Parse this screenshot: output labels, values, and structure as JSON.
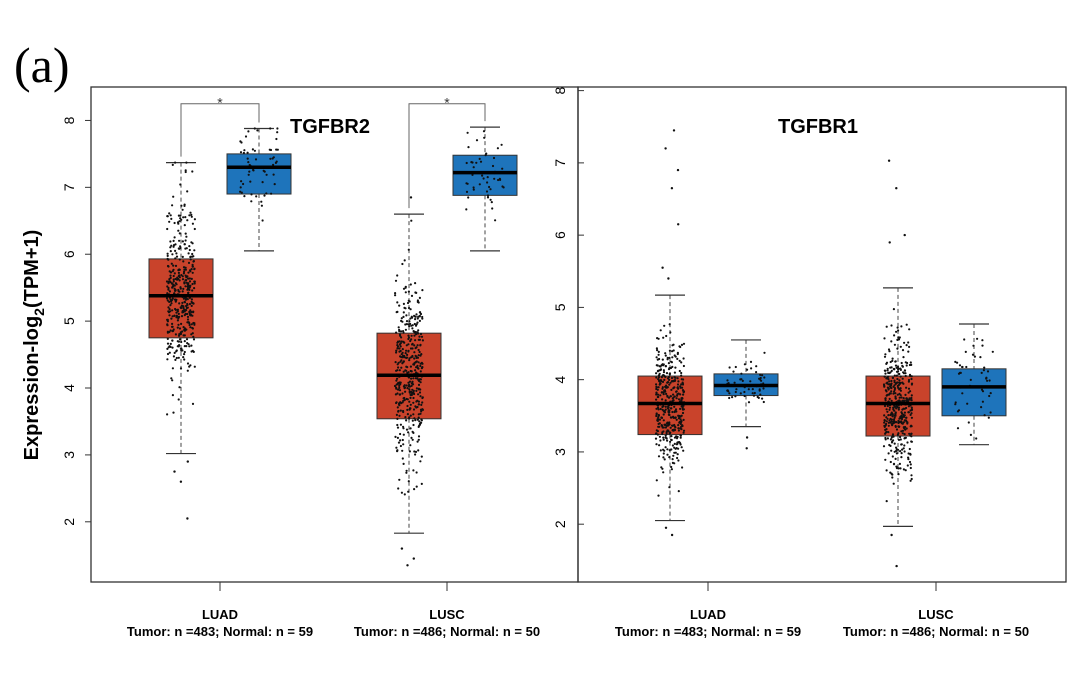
{
  "panel_label": "(a)",
  "y_axis_label": {
    "prefix": "Expression-log",
    "sub": "2",
    "suffix": "(TPM+1)"
  },
  "colors": {
    "tumor": "#c9432b",
    "normal": "#1e74bb"
  },
  "chart_data": [
    {
      "type": "boxplot",
      "title": "TGFBR2",
      "ylabel": "Expression-log2(TPM+1)",
      "ylim": [
        1.1,
        8.5
      ],
      "yticks": [
        "2",
        "3",
        "4",
        "5",
        "6",
        "7",
        "8"
      ],
      "groups": [
        {
          "name": "LUAD",
          "counts": "Tumor: n =483; Normal: n = 59",
          "significance": "*",
          "boxes": [
            {
              "series": "Tumor",
              "n": 483,
              "whisker_low": 3.02,
              "q1": 4.75,
              "median": 5.38,
              "q3": 5.93,
              "whisker_high": 7.37,
              "outliers": [
                2.9,
                2.75,
                2.6,
                2.05
              ]
            },
            {
              "series": "Normal",
              "n": 59,
              "whisker_low": 6.05,
              "q1": 6.9,
              "median": 7.3,
              "q3": 7.5,
              "whisker_high": 7.88,
              "outliers": []
            }
          ]
        },
        {
          "name": "LUSC",
          "counts": "Tumor: n =486; Normal: n = 50",
          "significance": "*",
          "boxes": [
            {
              "series": "Tumor",
              "n": 486,
              "whisker_low": 1.83,
              "q1": 3.54,
              "median": 4.19,
              "q3": 4.82,
              "whisker_high": 6.6,
              "outliers": [
                1.6,
                1.45,
                1.35,
                6.85
              ]
            },
            {
              "series": "Normal",
              "n": 50,
              "whisker_low": 6.05,
              "q1": 6.88,
              "median": 7.22,
              "q3": 7.48,
              "whisker_high": 7.9,
              "outliers": []
            }
          ]
        }
      ]
    },
    {
      "type": "boxplot",
      "title": "TGFBR1",
      "ylabel": "",
      "ylim": [
        1.2,
        8.05
      ],
      "yticks": [
        "2",
        "3",
        "4",
        "5",
        "6",
        "7",
        "8"
      ],
      "groups": [
        {
          "name": "LUAD",
          "counts": "Tumor: n =483; Normal: n = 59",
          "significance": "",
          "boxes": [
            {
              "series": "Tumor",
              "n": 483,
              "whisker_low": 2.05,
              "q1": 3.24,
              "median": 3.67,
              "q3": 4.05,
              "whisker_high": 5.17,
              "outliers": [
                5.4,
                5.55,
                6.15,
                6.65,
                6.9,
                7.2,
                7.45,
                1.95,
                1.85
              ]
            },
            {
              "series": "Normal",
              "n": 59,
              "whisker_low": 3.35,
              "q1": 3.78,
              "median": 3.92,
              "q3": 4.08,
              "whisker_high": 4.55,
              "outliers": [
                3.05,
                3.2
              ]
            }
          ]
        },
        {
          "name": "LUSC",
          "counts": "Tumor: n =486; Normal: n = 50",
          "significance": "",
          "boxes": [
            {
              "series": "Tumor",
              "n": 486,
              "whisker_low": 1.97,
              "q1": 3.22,
              "median": 3.67,
              "q3": 4.05,
              "whisker_high": 5.27,
              "outliers": [
                5.9,
                6.0,
                6.65,
                7.03,
                1.85,
                1.42
              ]
            },
            {
              "series": "Normal",
              "n": 50,
              "whisker_low": 3.1,
              "q1": 3.5,
              "median": 3.9,
              "q3": 4.15,
              "whisker_high": 4.77,
              "outliers": []
            }
          ]
        }
      ]
    }
  ]
}
